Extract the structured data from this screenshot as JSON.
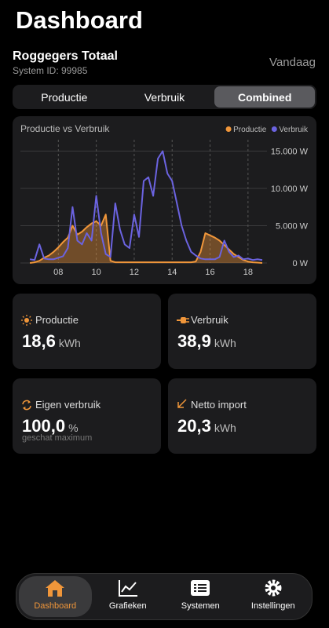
{
  "header": {
    "title": "Dashboard",
    "system_name": "Roggegers Totaal",
    "system_id": "System ID: 99985",
    "period": "Vandaag"
  },
  "tabs": [
    "Productie",
    "Verbruik",
    "Combined"
  ],
  "active_tab": 2,
  "chart_data": {
    "type": "line",
    "title": "Productie vs Verbruik",
    "x": [
      6.5,
      6.75,
      7,
      7.25,
      7.5,
      7.75,
      8,
      8.25,
      8.5,
      8.75,
      9,
      9.25,
      9.5,
      9.75,
      10,
      10.25,
      10.5,
      10.75,
      11,
      11.25,
      11.5,
      11.75,
      12,
      12.25,
      12.5,
      12.75,
      13,
      13.25,
      13.5,
      13.75,
      14,
      14.25,
      14.5,
      14.75,
      15,
      15.25,
      15.5,
      15.75,
      16,
      16.25,
      16.5,
      16.75,
      17,
      17.25,
      17.5,
      17.75,
      18,
      18.25,
      18.5,
      18.75
    ],
    "series": [
      {
        "name": "Productie",
        "color": "#f0963a",
        "values": [
          0,
          100,
          300,
          700,
          1000,
          1500,
          2100,
          2800,
          3400,
          5000,
          3800,
          4200,
          4800,
          5300,
          5600,
          5000,
          6500,
          300,
          100,
          100,
          100,
          100,
          100,
          100,
          100,
          100,
          100,
          100,
          100,
          100,
          100,
          100,
          100,
          100,
          100,
          200,
          1500,
          4000,
          3700,
          3400,
          3000,
          2400,
          1800,
          1200,
          800,
          400,
          200,
          100,
          50,
          0
        ]
      },
      {
        "name": "Verbruik",
        "color": "#6b63e0",
        "values": [
          500,
          400,
          2500,
          600,
          500,
          500,
          700,
          900,
          2000,
          7500,
          3000,
          2500,
          4000,
          3000,
          9000,
          4000,
          1200,
          800,
          8000,
          4500,
          2500,
          2000,
          6500,
          3500,
          11000,
          11500,
          9000,
          14000,
          15000,
          12000,
          11000,
          8000,
          5000,
          3000,
          1500,
          1000,
          600,
          500,
          500,
          500,
          800,
          3000,
          1500,
          800,
          1000,
          500,
          600,
          400,
          500,
          400
        ]
      }
    ],
    "xlim": [
      6,
      19
    ],
    "xticks": [
      {
        "value": 8,
        "label": "08"
      },
      10,
      12,
      14,
      16,
      18
    ],
    "ylim": [
      0,
      16000
    ],
    "yticks": [
      {
        "value": 0,
        "label": "0 W"
      },
      {
        "value": 5000,
        "label": "5.000 W"
      },
      {
        "value": 10000,
        "label": "10.000 W"
      },
      {
        "value": 15000,
        "label": "15.000 W"
      }
    ],
    "grid": true
  },
  "cards": [
    {
      "label": "Productie",
      "value": "18,6",
      "unit": "kWh"
    },
    {
      "label": "Verbruik",
      "value": "38,9",
      "unit": "kWh"
    },
    {
      "label": "Eigen verbruik",
      "value": "100,0",
      "unit": "%",
      "note": "geschat maximum"
    },
    {
      "label": "Netto import",
      "value": "20,3",
      "unit": "kWh"
    }
  ],
  "nav": [
    "Dashboard",
    "Grafieken",
    "Systemen",
    "Instellingen"
  ],
  "active_nav": 0
}
